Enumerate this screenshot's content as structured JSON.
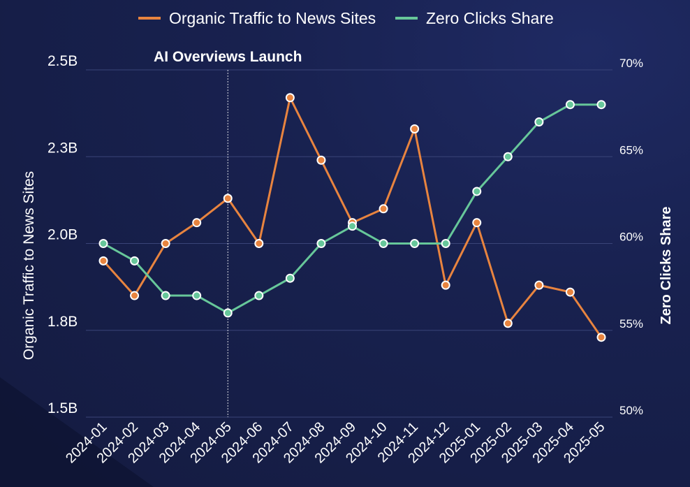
{
  "chart_data": {
    "type": "line",
    "title": "",
    "categories": [
      "2024-01",
      "2024-02",
      "2024-03",
      "2024-04",
      "2024-05",
      "2024-06",
      "2024-07",
      "2024-08",
      "2024-09",
      "2024-10",
      "2024-11",
      "2024-12",
      "2025-01",
      "2025-02",
      "2025-03",
      "2025-04",
      "2025-05"
    ],
    "series": [
      {
        "name": "Organic Traffic to News Sites",
        "axis": "left",
        "color": "#e8843f",
        "values": [
          1.95,
          1.85,
          2.0,
          2.06,
          2.13,
          2.0,
          2.42,
          2.24,
          2.06,
          2.1,
          2.33,
          1.88,
          2.06,
          1.77,
          1.88,
          1.86,
          1.73
        ]
      },
      {
        "name": "Zero Clicks Share",
        "axis": "right",
        "color": "#67c79a",
        "values": [
          60,
          59,
          57,
          57,
          56,
          57,
          58,
          60,
          61,
          60,
          60,
          60,
          63,
          65,
          67,
          68,
          68
        ]
      }
    ],
    "ylabel": "Organic Traffic to News Sites",
    "y2label": "Zero Clicks Share",
    "ylim": [
      1.5,
      2.5
    ],
    "y2lim": [
      50,
      70
    ],
    "yticks": [
      "1.5B",
      "1.8B",
      "2.0B",
      "2.3B",
      "2.5B"
    ],
    "yticks_values": [
      1.5,
      1.75,
      2.0,
      2.25,
      2.5
    ],
    "y2ticks": [
      "50%",
      "55%",
      "60%",
      "65%",
      "70%"
    ],
    "y2ticks_values": [
      50,
      55,
      60,
      65,
      70
    ],
    "annotation": {
      "label": "AI Overviews Launch",
      "at": "2024-05"
    },
    "legend": "top-center",
    "grid": true
  }
}
